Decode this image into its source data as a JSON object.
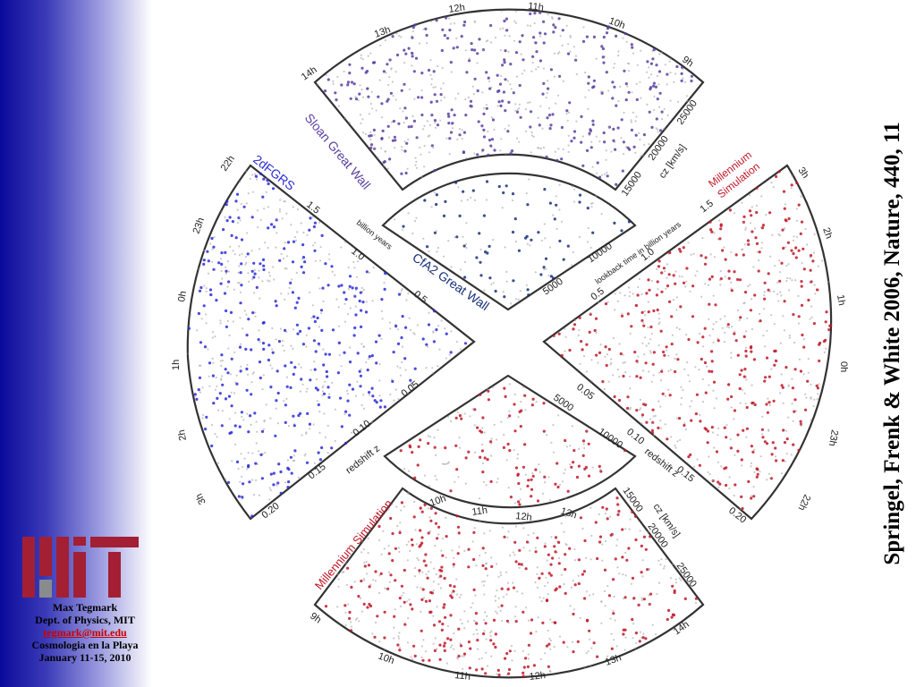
{
  "sidebar": {
    "logo_text": "MIT",
    "author": "Max Tegmark",
    "department": "Dept. of Physics, MIT",
    "email": "tegmark@mit.edu",
    "event": "Cosmologia en la Playa",
    "dates": "January 11-15, 2010"
  },
  "citation": "Springel, Frenk & White 2006, Nature, 440, 11",
  "colors": {
    "sloan": "#5a3fa0",
    "twodf": "#2a2ad8",
    "cfa": "#16307a",
    "millennium": "#c01828",
    "noise": "#9a9aa0"
  },
  "wedges": {
    "sloan": {
      "label": "Sloan Great Wall",
      "ra_ticks": [
        "14h",
        "13h",
        "12h",
        "11h",
        "10h",
        "9h"
      ],
      "cz_ticks": [
        "15000",
        "20000",
        "25000"
      ],
      "cz_label": "cz [km/s]"
    },
    "cfa2": {
      "label": "CfA2 Great Wall",
      "cz_ticks": [
        "5000",
        "10000"
      ],
      "lookback_label": "lookback time in billion years"
    },
    "twodf": {
      "label": "2dFGRS",
      "ra_ticks": [
        "22h",
        "23h",
        "0h",
        "1h",
        "2h",
        "3h"
      ],
      "z_ticks": [
        "0.05",
        "0.10",
        "0.15",
        "0.20"
      ],
      "z_label": "redshift z",
      "time_ticks": [
        "0.5",
        "1.0",
        "1.5"
      ],
      "time_label": "billion years"
    },
    "millennium_right": {
      "label_line1": "Millennium",
      "label_line2": "Simulation",
      "ra_ticks": [
        "3h",
        "2h",
        "1h",
        "0h",
        "23h",
        "22h"
      ],
      "z_ticks": [
        "0.05",
        "0.10",
        "0.15",
        "0.20"
      ],
      "z_label": "redshift z",
      "time_ticks": [
        "0.5",
        "1.0",
        "1.5"
      ],
      "time_label": "lookback time in billion years"
    },
    "millennium_inner": {
      "cz_ticks": [
        "5000",
        "10000"
      ],
      "ra_ticks": [
        "10h",
        "11h",
        "12h",
        "13h"
      ]
    },
    "millennium_bottom": {
      "label": "Millennium Simulation",
      "ra_ticks": [
        "9h",
        "10h",
        "11h",
        "12h",
        "13h",
        "14h"
      ],
      "cz_ticks": [
        "15000",
        "20000",
        "25000"
      ],
      "cz_label": "cz [km/s]"
    }
  }
}
